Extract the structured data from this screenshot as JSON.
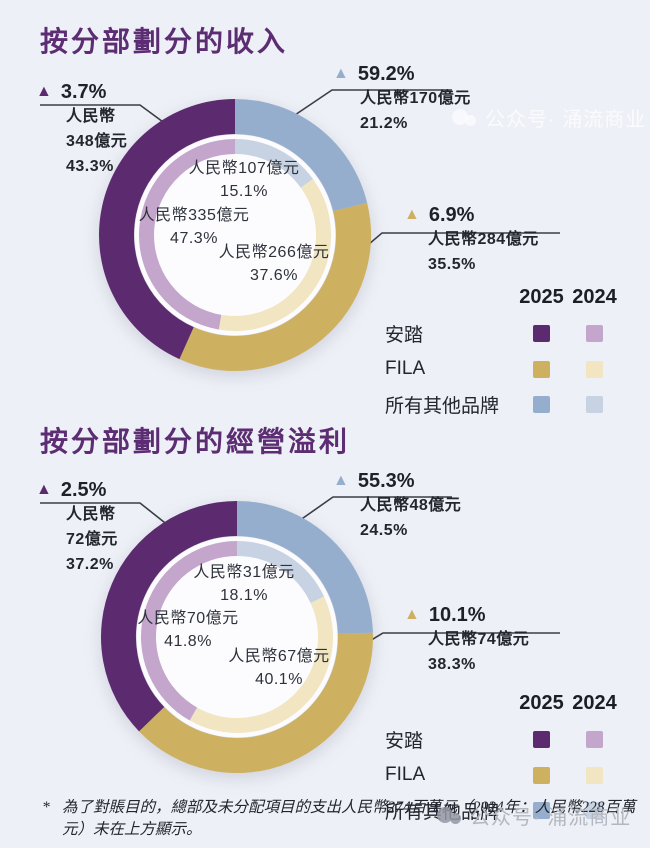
{
  "icons": {
    "up_triangle": "▲"
  },
  "legend": {
    "headers": [
      "2025",
      "2024"
    ],
    "rows": [
      {
        "label": "安踏",
        "swatches": [
          {
            "year": "2025",
            "color": "#5c2b6f"
          },
          {
            "year": "2024",
            "color": "#c4a6cc"
          }
        ]
      },
      {
        "label": "FILA",
        "swatches": [
          {
            "year": "2025",
            "color": "#cdb161"
          },
          {
            "year": "2024",
            "color": "#f1e5c2"
          }
        ]
      },
      {
        "label": "所有其他品牌",
        "swatches": [
          {
            "year": "2025",
            "color": "#96aecd"
          },
          {
            "year": "2024",
            "color": "#c7d3e3"
          }
        ]
      }
    ]
  },
  "chart_data": [
    {
      "type": "donut",
      "title": "按分部劃分的收入",
      "outer_ring_year": "2025",
      "inner_ring_year": "2024",
      "outer_2025": [
        {
          "name": "所有其他品牌",
          "pct": 21.2,
          "pct_label": "21.2%",
          "yoy": "59.2%",
          "value": "人民幣170億元",
          "value_lines": [
            "人民幣170億元"
          ],
          "color": "#96aecd"
        },
        {
          "name": "FILA",
          "pct": 35.5,
          "pct_label": "35.5%",
          "yoy": "6.9%",
          "value": "人民幣284億元",
          "value_lines": [
            "人民幣284億元"
          ],
          "color": "#cdb161"
        },
        {
          "name": "安踏",
          "pct": 43.3,
          "pct_label": "43.3%",
          "yoy": "3.7%",
          "value": "人民幣348億元",
          "value_lines": [
            "人民幣",
            "348億元"
          ],
          "color": "#5c2b6f"
        }
      ],
      "inner_2024": [
        {
          "name": "所有其他品牌",
          "pct": 15.1,
          "pct_label": "15.1%",
          "value": "人民幣107億元",
          "color": "#c7d3e3"
        },
        {
          "name": "FILA",
          "pct": 37.6,
          "pct_label": "37.6%",
          "value": "人民幣266億元",
          "color": "#f1e5c2"
        },
        {
          "name": "安踏",
          "pct": 47.3,
          "pct_label": "47.3%",
          "value": "人民幣335億元",
          "color": "#c4a6cc"
        }
      ]
    },
    {
      "type": "donut",
      "title": "按分部劃分的經營溢利",
      "outer_ring_year": "2025",
      "inner_ring_year": "2024",
      "outer_2025": [
        {
          "name": "所有其他品牌",
          "pct": 24.5,
          "pct_label": "24.5%",
          "yoy": "55.3%",
          "value": "人民幣48億元",
          "value_lines": [
            "人民幣48億元"
          ],
          "color": "#96aecd"
        },
        {
          "name": "FILA",
          "pct": 38.3,
          "pct_label": "38.3%",
          "yoy": "10.1%",
          "value": "人民幣74億元",
          "value_lines": [
            "人民幣74億元"
          ],
          "color": "#cdb161"
        },
        {
          "name": "安踏",
          "pct": 37.2,
          "pct_label": "37.2%",
          "yoy": "2.5%",
          "value": "人民幣72億元",
          "value_lines": [
            "人民幣",
            "72億元"
          ],
          "color": "#5c2b6f"
        }
      ],
      "inner_2024": [
        {
          "name": "所有其他品牌",
          "pct": 18.1,
          "pct_label": "18.1%",
          "value": "人民幣31億元",
          "color": "#c7d3e3"
        },
        {
          "name": "FILA",
          "pct": 40.1,
          "pct_label": "40.1%",
          "value": "人民幣67億元",
          "color": "#f1e5c2"
        },
        {
          "name": "安踏",
          "pct": 41.8,
          "pct_label": "41.8%",
          "value": "人民幣70億元",
          "color": "#c4a6cc"
        }
      ]
    }
  ],
  "footnote": {
    "marker": "*",
    "text": "為了對賬目的，總部及未分配項目的支出人民幣274百萬元（2024年：人民幣228百萬元）未在上方顯示。"
  },
  "watermark": {
    "text": "公众号· 涌流商业"
  },
  "colors": {
    "background": "#edf0f6",
    "donut_hole": "#fcfcfe",
    "title": "#5d2d73"
  }
}
